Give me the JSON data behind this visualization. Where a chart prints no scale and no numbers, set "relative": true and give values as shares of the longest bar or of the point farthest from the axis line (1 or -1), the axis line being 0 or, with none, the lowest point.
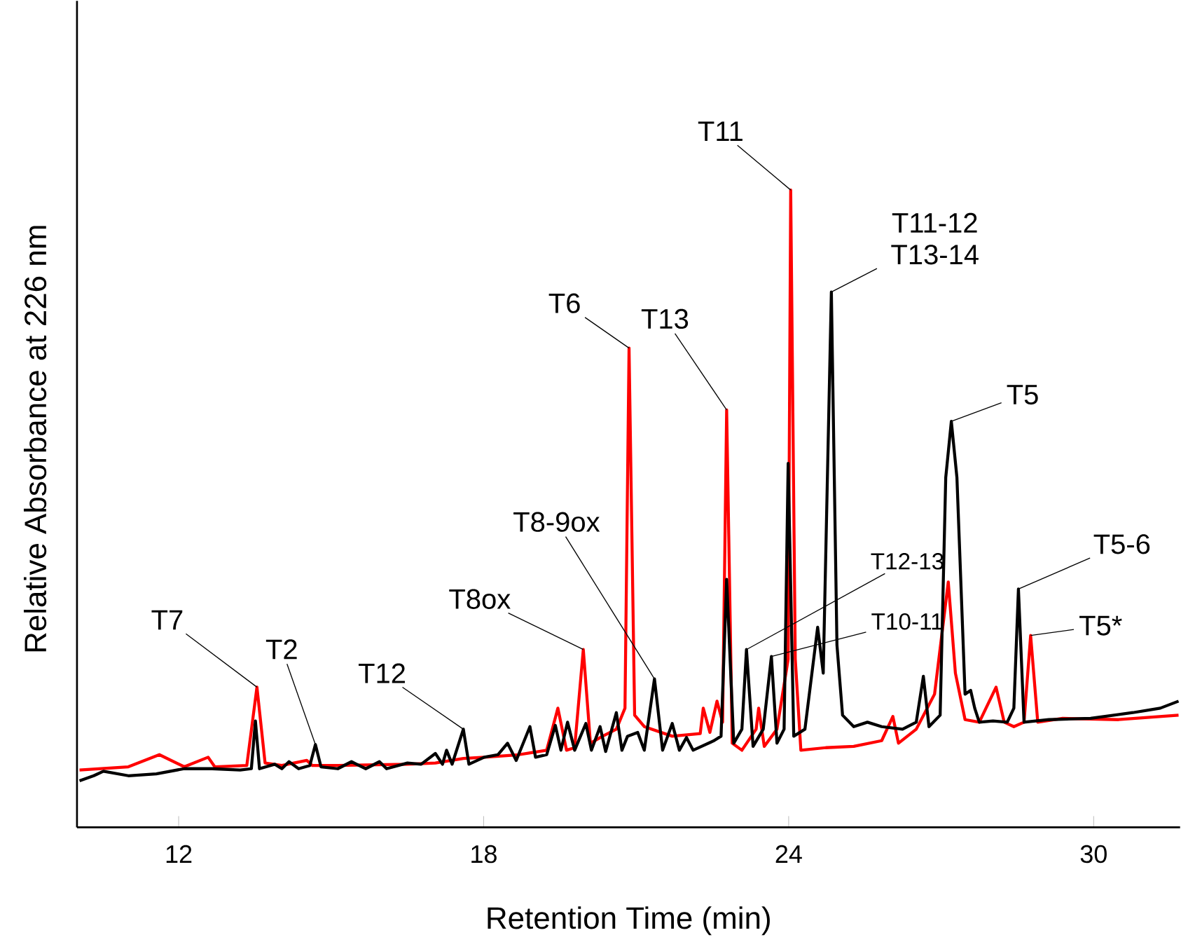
{
  "chart_data": {
    "type": "line",
    "relative": true,
    "xlabel": "Retention Time (min)",
    "ylabel": "Relative Absorbance at 226 nm",
    "xlim": [
      10,
      31.7
    ],
    "xticks": [
      12,
      18,
      24,
      30
    ],
    "tick_labels": "x",
    "marker": "none",
    "line_style": "solid",
    "series": [
      {
        "color": "#ff0000",
        "x": [
          10.05,
          11.01,
          11.62,
          12.11,
          12.58,
          12.71,
          13.34,
          13.54,
          13.7,
          14.03,
          14.52,
          14.63,
          15.13,
          16.5,
          17.05,
          17.6,
          18.01,
          18.69,
          19.24,
          19.46,
          19.63,
          19.79,
          19.96,
          20.1,
          20.34,
          20.61,
          20.78,
          20.86,
          20.97,
          21.16,
          21.71,
          22.26,
          22.32,
          22.45,
          22.59,
          22.7,
          22.78,
          22.89,
          23.08,
          23.36,
          23.41,
          23.52,
          23.77,
          23.99,
          24.04,
          24.13,
          24.24,
          24.73,
          25.28,
          25.83,
          26.05,
          26.16,
          26.51,
          26.87,
          27.14,
          27.28,
          27.47,
          27.75,
          28.08,
          28.24,
          28.43,
          28.63,
          28.76,
          28.9,
          29.39,
          30.49,
          31.67
        ],
        "values": [
          0.09,
          0.095,
          0.114,
          0.095,
          0.11,
          0.095,
          0.097,
          0.22,
          0.101,
          0.097,
          0.105,
          0.097,
          0.097,
          0.099,
          0.101,
          0.108,
          0.11,
          0.114,
          0.121,
          0.187,
          0.121,
          0.125,
          0.279,
          0.132,
          0.143,
          0.154,
          0.187,
          0.752,
          0.176,
          0.158,
          0.143,
          0.147,
          0.187,
          0.149,
          0.198,
          0.165,
          0.655,
          0.132,
          0.121,
          0.154,
          0.187,
          0.127,
          0.154,
          0.264,
          1.0,
          0.264,
          0.121,
          0.125,
          0.127,
          0.136,
          0.174,
          0.132,
          0.154,
          0.209,
          0.385,
          0.242,
          0.169,
          0.165,
          0.22,
          0.165,
          0.158,
          0.165,
          0.301,
          0.165,
          0.171,
          0.169,
          0.176
        ]
      },
      {
        "color": "#000000",
        "x": [
          10.05,
          10.33,
          10.52,
          11.01,
          11.56,
          12.11,
          12.66,
          13.21,
          13.43,
          13.51,
          13.59,
          13.89,
          14.03,
          14.17,
          14.36,
          14.58,
          14.69,
          14.8,
          15.13,
          15.4,
          15.68,
          15.95,
          16.09,
          16.5,
          16.77,
          17.05,
          17.19,
          17.27,
          17.38,
          17.6,
          17.71,
          18.01,
          18.28,
          18.47,
          18.64,
          18.91,
          19.02,
          19.24,
          19.41,
          19.52,
          19.65,
          19.79,
          20.01,
          20.12,
          20.29,
          20.4,
          20.61,
          20.72,
          20.83,
          21.03,
          21.16,
          21.36,
          21.52,
          21.71,
          21.85,
          21.99,
          22.12,
          22.53,
          22.67,
          22.78,
          22.92,
          23.08,
          23.17,
          23.3,
          23.5,
          23.66,
          23.77,
          23.91,
          23.99,
          24.1,
          24.32,
          24.57,
          24.68,
          24.84,
          24.95,
          25.06,
          25.28,
          25.55,
          25.83,
          26.24,
          26.51,
          26.65,
          26.76,
          26.98,
          27.09,
          27.2,
          27.31,
          27.47,
          27.58,
          27.66,
          27.75,
          28.02,
          28.3,
          28.43,
          28.52,
          28.63,
          29.12,
          29.94,
          30.77,
          31.31,
          31.67
        ],
        "values": [
          0.073,
          0.081,
          0.088,
          0.081,
          0.084,
          0.092,
          0.092,
          0.09,
          0.092,
          0.167,
          0.092,
          0.099,
          0.092,
          0.103,
          0.092,
          0.097,
          0.13,
          0.095,
          0.092,
          0.103,
          0.092,
          0.103,
          0.092,
          0.101,
          0.099,
          0.116,
          0.099,
          0.121,
          0.099,
          0.154,
          0.099,
          0.11,
          0.114,
          0.132,
          0.105,
          0.158,
          0.11,
          0.114,
          0.16,
          0.121,
          0.165,
          0.121,
          0.163,
          0.121,
          0.158,
          0.119,
          0.18,
          0.121,
          0.143,
          0.149,
          0.121,
          0.233,
          0.121,
          0.163,
          0.121,
          0.141,
          0.121,
          0.136,
          0.143,
          0.389,
          0.132,
          0.154,
          0.279,
          0.127,
          0.154,
          0.268,
          0.132,
          0.154,
          0.571,
          0.143,
          0.154,
          0.314,
          0.242,
          0.84,
          0.286,
          0.176,
          0.158,
          0.165,
          0.158,
          0.154,
          0.165,
          0.237,
          0.158,
          0.176,
          0.549,
          0.637,
          0.549,
          0.209,
          0.215,
          0.187,
          0.165,
          0.167,
          0.165,
          0.187,
          0.374,
          0.165,
          0.169,
          0.171,
          0.18,
          0.187,
          0.198
        ]
      }
    ],
    "annotations": [
      {
        "text": "T7",
        "x": 13.54,
        "y": 0.22
      },
      {
        "text": "T2",
        "x": 14.69,
        "y": 0.13
      },
      {
        "text": "T12",
        "x": 17.6,
        "y": 0.154
      },
      {
        "text": "T8ox",
        "x": 19.96,
        "y": 0.279
      },
      {
        "text": "T8-9ox",
        "x": 21.36,
        "y": 0.233
      },
      {
        "text": "T6",
        "x": 20.86,
        "y": 0.752
      },
      {
        "text": "T13",
        "x": 22.78,
        "y": 0.655
      },
      {
        "text": "T11",
        "x": 24.04,
        "y": 1.0
      },
      {
        "text": "T11-12 T13-14",
        "x": 24.84,
        "y": 0.84
      },
      {
        "text": "T5",
        "x": 27.2,
        "y": 0.637
      },
      {
        "text": "T12-13",
        "x": 23.17,
        "y": 0.279
      },
      {
        "text": "T10-11",
        "x": 23.66,
        "y": 0.268
      },
      {
        "text": "T5-6",
        "x": 28.52,
        "y": 0.374
      },
      {
        "text": "T5*",
        "x": 28.76,
        "y": 0.301
      }
    ]
  }
}
